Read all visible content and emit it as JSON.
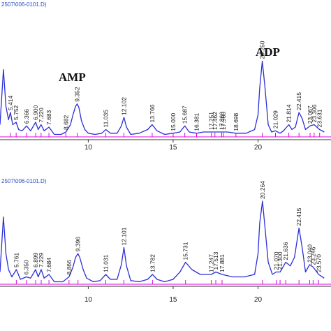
{
  "chart_data": [
    {
      "type": "line",
      "header": "2507\\006-0101.D)",
      "annotations": [
        "AMP",
        "ADP"
      ],
      "x_ticks": [
        10,
        15,
        20
      ],
      "peak_labels": [
        "5.414",
        "5.752",
        "6.366",
        "6.900",
        "7.220",
        "7.683",
        "8.682",
        "9.352",
        "11.035",
        "12.102",
        "13.766",
        "15.000",
        "15.687",
        "16.381",
        "17.251",
        "17.462",
        "17.860",
        "17.960",
        "18.698",
        "20.250",
        "21.029",
        "21.814",
        "22.415",
        "23.067",
        "23.306",
        "23.631"
      ],
      "series": [
        {
          "x": [
            4.8,
            5.0,
            5.15,
            5.3,
            5.414,
            5.55,
            5.752,
            5.9,
            6.1,
            6.366,
            6.6,
            6.9,
            7.05,
            7.22,
            7.4,
            7.683,
            8.0,
            8.4,
            8.682,
            8.95,
            9.1,
            9.25,
            9.352,
            9.45,
            9.6,
            9.8,
            10.0,
            10.4,
            10.8,
            11.035,
            11.3,
            11.7,
            11.95,
            12.102,
            12.25,
            12.5,
            13.0,
            13.5,
            13.766,
            14.05,
            14.5,
            15.0,
            15.4,
            15.687,
            15.95,
            16.381,
            16.8,
            17.3,
            17.8,
            18.2,
            18.698,
            19.3,
            19.8,
            20.0,
            20.1,
            20.25,
            20.4,
            20.6,
            20.8,
            21.029,
            21.3,
            21.5,
            21.814,
            22.0,
            22.2,
            22.415,
            22.6,
            22.8,
            23.067,
            23.306,
            23.631,
            23.9
          ],
          "y": [
            0.1,
            0.55,
            0.25,
            0.14,
            0.2,
            0.1,
            0.12,
            0.06,
            0.05,
            0.09,
            0.05,
            0.12,
            0.06,
            0.1,
            0.05,
            0.08,
            0.02,
            0.02,
            0.04,
            0.1,
            0.18,
            0.25,
            0.27,
            0.24,
            0.13,
            0.06,
            0.03,
            0.02,
            0.03,
            0.06,
            0.03,
            0.03,
            0.09,
            0.16,
            0.08,
            0.02,
            0.03,
            0.06,
            0.1,
            0.05,
            0.02,
            0.03,
            0.04,
            0.09,
            0.04,
            0.03,
            0.04,
            0.04,
            0.04,
            0.04,
            0.03,
            0.03,
            0.06,
            0.18,
            0.4,
            0.62,
            0.42,
            0.1,
            0.04,
            0.05,
            0.03,
            0.05,
            0.1,
            0.06,
            0.08,
            0.2,
            0.15,
            0.06,
            0.09,
            0.1,
            0.06,
            0.04
          ]
        }
      ]
    },
    {
      "type": "line",
      "header": "2507\\006-0101.D)",
      "x_ticks": [
        10,
        15,
        20
      ],
      "peak_labels": [
        "5.761",
        "6.350",
        "6.899",
        "7.229",
        "7.684",
        "8.866",
        "9.396",
        "11.031",
        "12.101",
        "13.782",
        "15.731",
        "17.247",
        "17.513",
        "17.881",
        "20.264",
        "21.070",
        "21.300",
        "21.636",
        "22.415",
        "23.040",
        "23.246",
        "23.570"
      ],
      "series": [
        {
          "x": [
            4.8,
            5.0,
            5.15,
            5.3,
            5.5,
            5.761,
            6.0,
            6.35,
            6.6,
            6.899,
            7.05,
            7.229,
            7.4,
            7.684,
            8.0,
            8.5,
            8.866,
            9.1,
            9.25,
            9.396,
            9.5,
            9.7,
            9.9,
            10.3,
            10.7,
            11.031,
            11.3,
            11.7,
            11.95,
            12.101,
            12.25,
            12.5,
            13.0,
            13.5,
            13.782,
            14.05,
            14.5,
            15.0,
            15.4,
            15.731,
            16.1,
            16.6,
            17.247,
            17.513,
            17.881,
            18.5,
            19.2,
            19.8,
            20.0,
            20.1,
            20.264,
            20.4,
            20.6,
            20.85,
            21.07,
            21.3,
            21.636,
            21.9,
            22.15,
            22.415,
            22.6,
            22.8,
            23.04,
            23.246,
            23.57,
            23.9
          ],
          "y": [
            0.1,
            0.55,
            0.25,
            0.12,
            0.06,
            0.12,
            0.04,
            0.06,
            0.05,
            0.12,
            0.06,
            0.12,
            0.05,
            0.08,
            0.02,
            0.02,
            0.06,
            0.14,
            0.22,
            0.25,
            0.22,
            0.12,
            0.05,
            0.02,
            0.03,
            0.08,
            0.04,
            0.04,
            0.16,
            0.3,
            0.15,
            0.03,
            0.02,
            0.04,
            0.08,
            0.04,
            0.02,
            0.04,
            0.1,
            0.18,
            0.12,
            0.08,
            0.08,
            0.1,
            0.08,
            0.06,
            0.06,
            0.08,
            0.25,
            0.5,
            0.68,
            0.48,
            0.18,
            0.08,
            0.1,
            0.1,
            0.18,
            0.15,
            0.22,
            0.46,
            0.3,
            0.1,
            0.16,
            0.14,
            0.08,
            0.05
          ]
        }
      ]
    }
  ]
}
